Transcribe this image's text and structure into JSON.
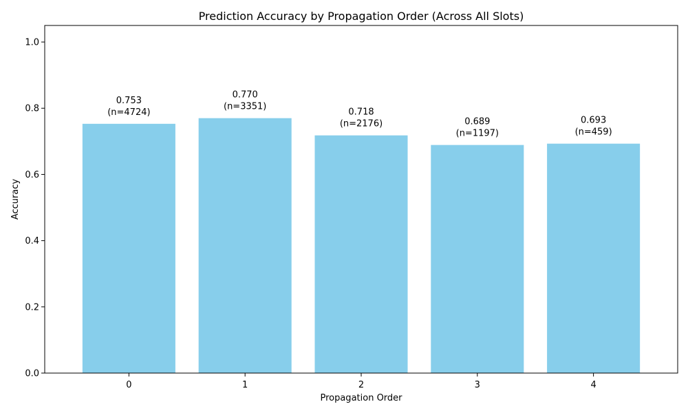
{
  "chart_data": {
    "type": "bar",
    "title": "Prediction Accuracy by Propagation Order (Across All Slots)",
    "xlabel": "Propagation Order",
    "ylabel": "Accuracy",
    "categories": [
      "0",
      "1",
      "2",
      "3",
      "4"
    ],
    "values": [
      0.753,
      0.77,
      0.718,
      0.689,
      0.693
    ],
    "value_labels": [
      "0.753",
      "0.770",
      "0.718",
      "0.689",
      "0.693"
    ],
    "count_labels": [
      "(n=4724)",
      "(n=3351)",
      "(n=2176)",
      "(n=1197)",
      "(n=459)"
    ],
    "ylim": [
      0,
      1.05
    ],
    "yticks": [
      0.0,
      0.2,
      0.4,
      0.6,
      0.8,
      1.0
    ],
    "ytick_labels": [
      "0.0",
      "0.2",
      "0.4",
      "0.6",
      "0.8",
      "1.0"
    ],
    "grid": false,
    "colors": {
      "bar": "#87ceeb",
      "axis": "#000000",
      "text": "#000000"
    }
  }
}
